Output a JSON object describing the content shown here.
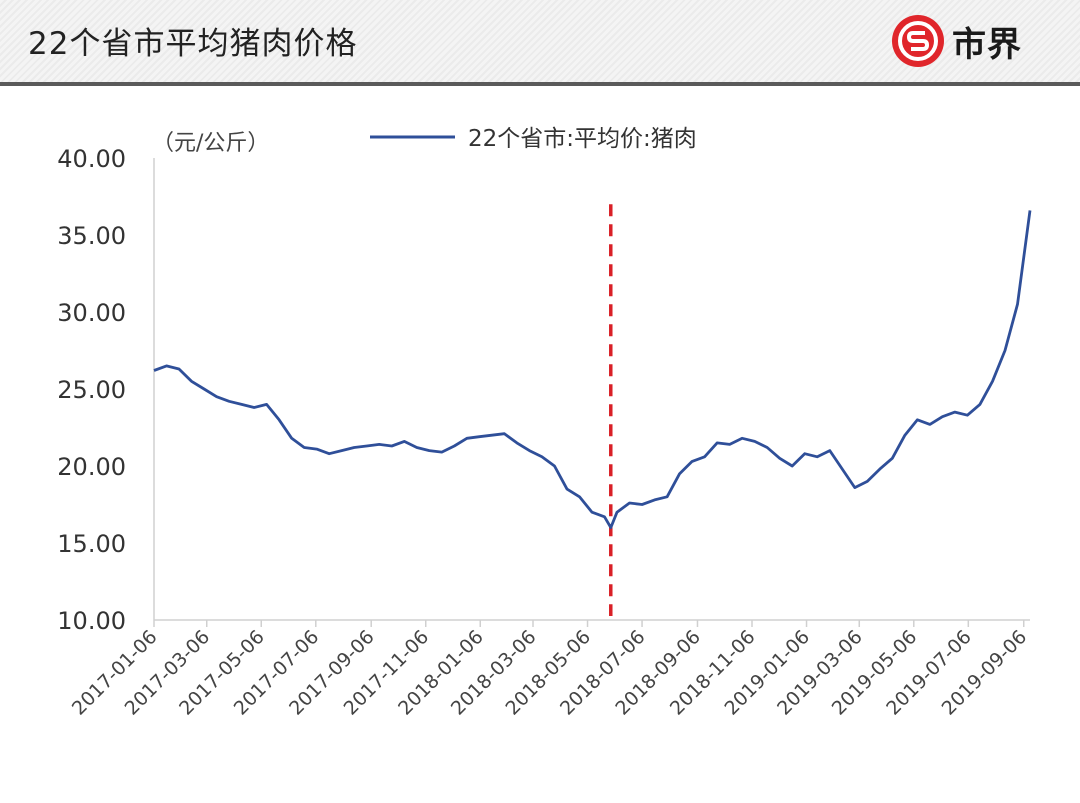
{
  "header": {
    "title": "22个省市平均猪肉价格",
    "logo_text": "市界"
  },
  "colors": {
    "line": "#2f4f99",
    "marker": "#d92027",
    "logo": "#e0262b"
  },
  "chart_data": {
    "type": "line",
    "title": "22个省市平均猪肉价格",
    "ylabel": "（元/公斤）",
    "xlabel": "",
    "ylim": [
      10,
      40
    ],
    "yticks": [
      "10.00",
      "15.00",
      "20.00",
      "25.00",
      "30.00",
      "35.00",
      "40.00"
    ],
    "xlim": [
      "2017-01-06",
      "2019-09-13"
    ],
    "xticks": [
      "2017-01-06",
      "2017-03-06",
      "2017-05-06",
      "2017-07-06",
      "2017-09-06",
      "2017-11-06",
      "2018-01-06",
      "2018-03-06",
      "2018-05-06",
      "2018-07-06",
      "2018-09-06",
      "2018-11-06",
      "2019-01-06",
      "2019-03-06",
      "2019-05-06",
      "2019-07-06",
      "2019-09-06"
    ],
    "legend": {
      "position": "top",
      "entries": [
        "22个省市:平均价:猪肉"
      ]
    },
    "grid": false,
    "series": [
      {
        "name": "22个省市:平均价:猪肉",
        "x": [
          "2017-01-06",
          "2017-01-20",
          "2017-02-03",
          "2017-02-17",
          "2017-03-03",
          "2017-03-17",
          "2017-03-31",
          "2017-04-14",
          "2017-04-28",
          "2017-05-12",
          "2017-05-26",
          "2017-06-09",
          "2017-06-23",
          "2017-07-07",
          "2017-07-21",
          "2017-08-04",
          "2017-08-18",
          "2017-09-01",
          "2017-09-15",
          "2017-09-29",
          "2017-10-13",
          "2017-10-27",
          "2017-11-10",
          "2017-11-24",
          "2017-12-08",
          "2017-12-22",
          "2018-01-05",
          "2018-01-19",
          "2018-02-02",
          "2018-02-16",
          "2018-03-02",
          "2018-03-16",
          "2018-03-30",
          "2018-04-13",
          "2018-04-27",
          "2018-05-11",
          "2018-05-25",
          "2018-06-01",
          "2018-06-08",
          "2018-06-22",
          "2018-07-06",
          "2018-07-20",
          "2018-08-03",
          "2018-08-17",
          "2018-08-31",
          "2018-09-14",
          "2018-09-28",
          "2018-10-12",
          "2018-10-26",
          "2018-11-09",
          "2018-11-23",
          "2018-12-07",
          "2018-12-21",
          "2019-01-04",
          "2019-01-18",
          "2019-02-01",
          "2019-02-15",
          "2019-03-01",
          "2019-03-15",
          "2019-03-29",
          "2019-04-12",
          "2019-04-26",
          "2019-05-10",
          "2019-05-24",
          "2019-06-07",
          "2019-06-21",
          "2019-07-05",
          "2019-07-19",
          "2019-08-02",
          "2019-08-16",
          "2019-08-30",
          "2019-09-13"
        ],
        "values": [
          26.2,
          26.5,
          26.3,
          25.5,
          25.0,
          24.5,
          24.2,
          24.0,
          23.8,
          24.0,
          23.0,
          21.8,
          21.2,
          21.1,
          20.8,
          21.0,
          21.2,
          21.3,
          21.4,
          21.3,
          21.6,
          21.2,
          21.0,
          20.9,
          21.3,
          21.8,
          21.9,
          22.0,
          22.1,
          21.5,
          21.0,
          20.6,
          20.0,
          18.5,
          18.0,
          17.0,
          16.7,
          16.0,
          17.0,
          17.6,
          17.5,
          17.8,
          18.0,
          19.5,
          20.3,
          20.6,
          21.5,
          21.4,
          21.8,
          21.6,
          21.2,
          20.5,
          20.0,
          20.8,
          20.6,
          21.0,
          19.8,
          18.6,
          19.0,
          19.8,
          20.5,
          22.0,
          23.0,
          22.7,
          23.2,
          23.5,
          23.3,
          24.0,
          25.5,
          27.5,
          30.5,
          36.6
        ]
      }
    ],
    "annotations": [
      {
        "type": "vertical-dashed-line",
        "x": "2018-06-01"
      }
    ]
  }
}
